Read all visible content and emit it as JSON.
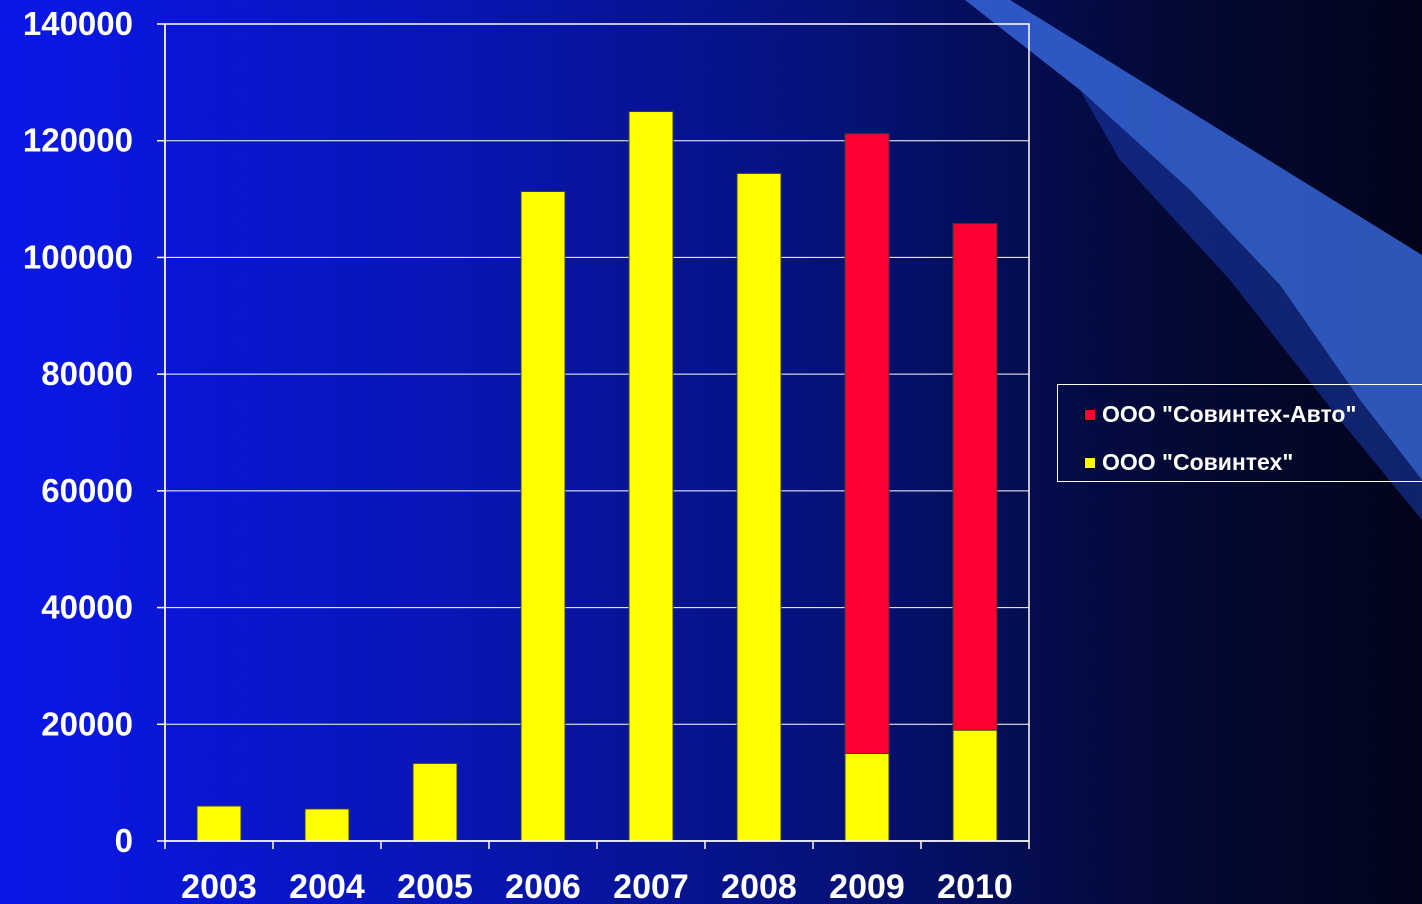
{
  "chart_data": {
    "type": "bar",
    "stacked": true,
    "categories": [
      "2003",
      "2004",
      "2005",
      "2006",
      "2007",
      "2008",
      "2009",
      "2010"
    ],
    "series": [
      {
        "name": "ООО \"Совинтех\"",
        "color": "#ffff00",
        "values": [
          6000,
          5500,
          13300,
          111300,
          125000,
          114400,
          15000,
          19000
        ]
      },
      {
        "name": "ООО \"Совинтех-Авто\"",
        "color": "#ff0033",
        "values": [
          0,
          0,
          0,
          0,
          0,
          0,
          106200,
          86800
        ]
      }
    ],
    "ylim": [
      0,
      140000
    ],
    "yticks": [
      0,
      20000,
      40000,
      60000,
      80000,
      100000,
      120000,
      140000
    ],
    "grid": true,
    "legend_position": "right",
    "legend_order": [
      1,
      0
    ],
    "title": "",
    "xlabel": "",
    "ylabel": ""
  }
}
